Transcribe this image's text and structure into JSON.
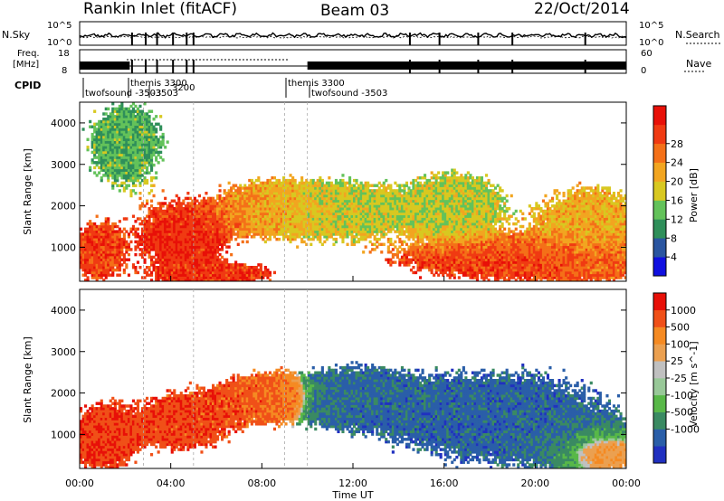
{
  "header": {
    "site": "Rankin Inlet (fitACF)",
    "beam": "Beam 03",
    "date": "22/Oct/2014"
  },
  "top_panels": {
    "nsky_label": "N.Sky",
    "nsearch_label": "N.Search",
    "nsky_ticks": [
      "10^5",
      "10^0"
    ],
    "nsearch_ticks": [
      "10^5",
      "10^0"
    ],
    "freq_label_1": "Freq.",
    "freq_label_2": "[MHz]",
    "freq_ticks": [
      "18",
      "8"
    ],
    "nave_ticks": [
      "60",
      "0"
    ],
    "nave_label": "Nave",
    "cpid_label": "CPID",
    "cpid_entries": [
      {
        "text": "twofsound -3503"
      },
      {
        "text": "themis 3300"
      },
      {
        "text": "-3503"
      },
      {
        "text": "3200"
      },
      {
        "text": "themis 3300"
      },
      {
        "text": "twofsound -3503"
      }
    ]
  },
  "colors": {
    "power_scale": [
      "#1010e0",
      "#2a55a0",
      "#2f8f5a",
      "#63c25a",
      "#d8c820",
      "#f2a520",
      "#f47018",
      "#f03a12",
      "#e81008"
    ],
    "velocity_scale": [
      "#e81008",
      "#f05018",
      "#f58a22",
      "#eba050",
      "#c0c0c0",
      "#98c898",
      "#58b848",
      "#3a8a62",
      "#2a5ea8",
      "#2030c0"
    ]
  },
  "chart_data": [
    {
      "type": "heatmap",
      "title": "Power",
      "xlabel": "",
      "ylabel": "Slant Range [km]",
      "x_ticks": [
        "00:00",
        "04:00",
        "08:00",
        "12:00",
        "16:00",
        "20:00",
        "00:00"
      ],
      "y_ticks": [
        "1000",
        "2000",
        "3000",
        "4000"
      ],
      "xlim": [
        0,
        24
      ],
      "ylim": [
        180,
        4500
      ],
      "colorbar_label": "Power [dB]",
      "colorbar_ticks": [
        "4",
        "8",
        "12",
        "16",
        "20",
        "24",
        "28"
      ],
      "colorbar_range": [
        0,
        30
      ],
      "blobs": [
        {
          "t": 0.8,
          "r": 900,
          "value": 26,
          "spread_t": 0.8,
          "spread_r": 500
        },
        {
          "t": 4.5,
          "r": 1300,
          "value": 28,
          "spread_t": 1.4,
          "spread_r": 600
        },
        {
          "t": 8.3,
          "r": 1950,
          "value": 20,
          "spread_t": 1.5,
          "spread_r": 450
        },
        {
          "t": 6.0,
          "r": 350,
          "value": 27,
          "spread_t": 1.8,
          "spread_r": 180
        },
        {
          "t": 11.5,
          "r": 1900,
          "value": 14,
          "spread_t": 2.0,
          "spread_r": 500
        },
        {
          "t": 19.5,
          "r": 700,
          "value": 27,
          "spread_t": 4.0,
          "spread_r": 350
        },
        {
          "t": 16.5,
          "r": 2000,
          "value": 14,
          "spread_t": 1.5,
          "spread_r": 600
        },
        {
          "t": 22.5,
          "r": 1500,
          "value": 18,
          "spread_t": 1.8,
          "spread_r": 700
        },
        {
          "t": 2.0,
          "r": 3500,
          "value": 10,
          "spread_t": 1.2,
          "spread_r": 700
        }
      ]
    },
    {
      "type": "heatmap",
      "title": "Velocity",
      "xlabel": "Time UT",
      "ylabel": "Slant Range [km]",
      "x_ticks": [
        "00:00",
        "04:00",
        "08:00",
        "12:00",
        "16:00",
        "20:00",
        "00:00"
      ],
      "y_ticks": [
        "1000",
        "2000",
        "3000",
        "4000"
      ],
      "xlim": [
        0,
        24
      ],
      "ylim": [
        180,
        4500
      ],
      "colorbar_label": "Velocity [m s^-1]",
      "colorbar_ticks": [
        "1000",
        "500",
        "100",
        "25",
        "-25",
        "-100",
        "-500",
        "-1000"
      ],
      "blobs": [
        {
          "t": 1.0,
          "r": 900,
          "value": 400,
          "spread_t": 1.0,
          "spread_r": 600
        },
        {
          "t": 4.5,
          "r": 1300,
          "value": 300,
          "spread_t": 1.5,
          "spread_r": 500
        },
        {
          "t": 8.0,
          "r": 1900,
          "value": 200,
          "spread_t": 1.5,
          "spread_r": 400
        },
        {
          "t": 12.0,
          "r": 1900,
          "value": -150,
          "spread_t": 2.0,
          "spread_r": 500
        },
        {
          "t": 18.5,
          "r": 1400,
          "value": -200,
          "spread_t": 3.5,
          "spread_r": 800
        },
        {
          "t": 22.5,
          "r": 700,
          "value": 80,
          "spread_t": 1.5,
          "spread_r": 400
        }
      ]
    }
  ]
}
